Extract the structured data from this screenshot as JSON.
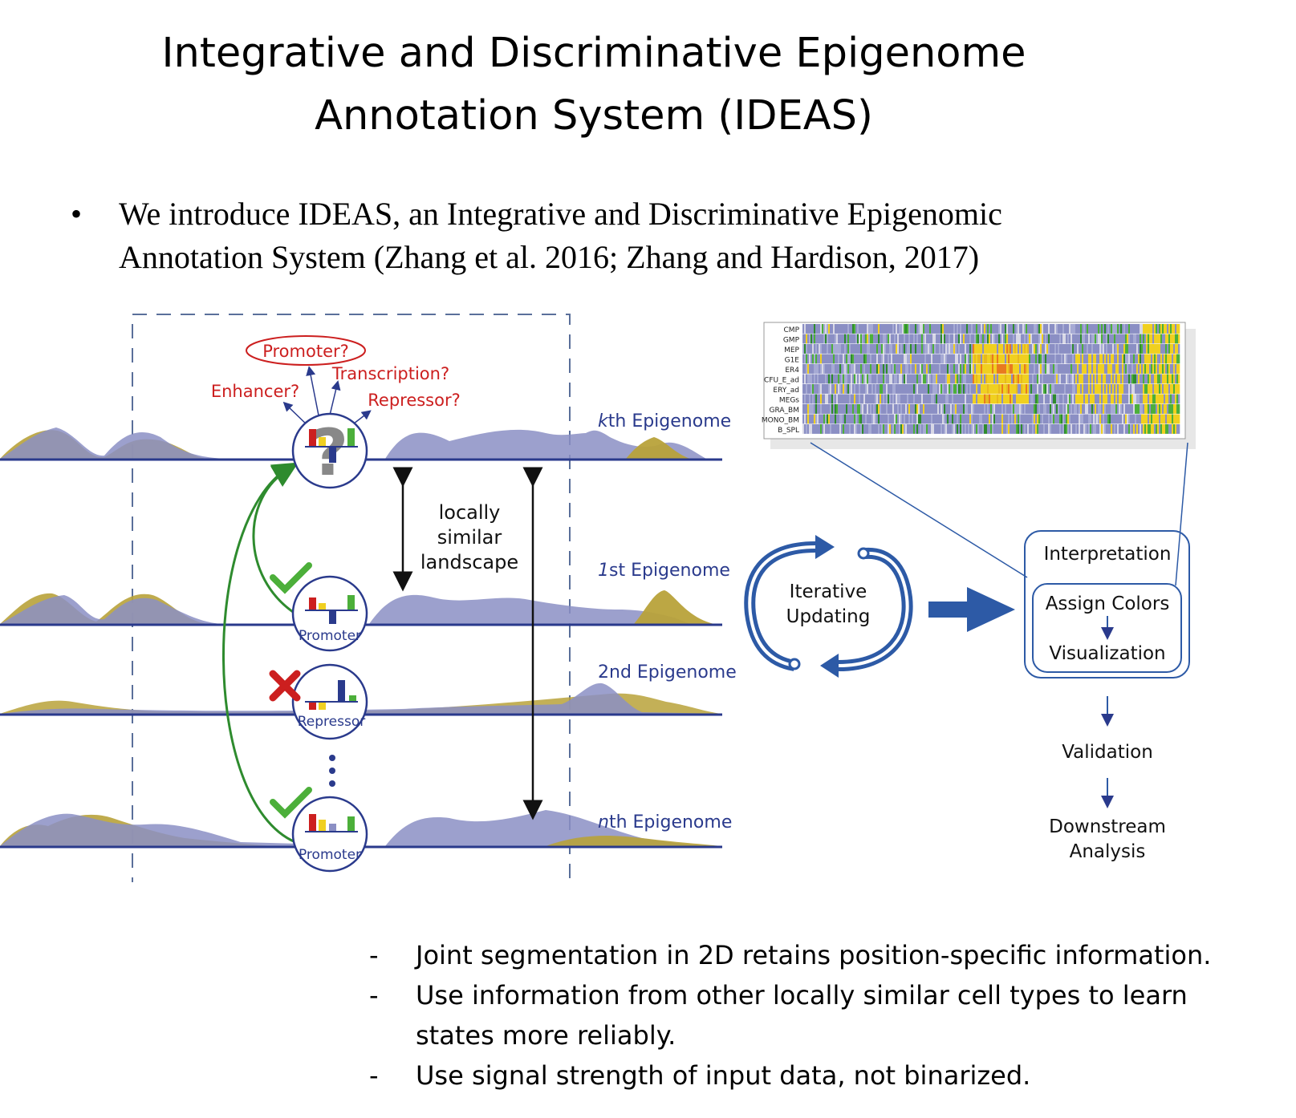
{
  "title": {
    "line1": "Integrative and Discriminative Epigenome",
    "line2": "Annotation System (IDEAS)"
  },
  "bullet": {
    "marker": "•",
    "line1": "We introduce IDEAS, an Integrative and Discriminative Epigenomic",
    "line2": "Annotation System (Zhang et al. 2016; Zhang and Hardison, 2017)"
  },
  "diagram": {
    "questions": {
      "promoter": "Promoter?",
      "transcription": "Transcription?",
      "enhancer": "Enhancer?",
      "repressor": "Repressor?"
    },
    "epigenomes": {
      "kth": {
        "italic": "k",
        "rest": "th Epigenome"
      },
      "first": {
        "italic": "1",
        "rest": "st Epigenome"
      },
      "second": {
        "italic": "",
        "rest": "2nd Epigenome"
      },
      "nth": {
        "italic": "n",
        "rest": "th Epigenome"
      }
    },
    "node_labels": {
      "first": "Promoter",
      "second": "Repressor",
      "nth": "Promoter"
    },
    "question_glyph": "?",
    "locally": [
      "locally",
      "similar",
      "landscape"
    ],
    "iterative": [
      "Iterative",
      "Updating"
    ],
    "flow": {
      "interpretation": "Interpretation",
      "assign_colors": "Assign Colors",
      "visualization": "Visualization",
      "validation": "Validation",
      "downstream": [
        "Downstream",
        "Analysis"
      ]
    },
    "heatmap_rows": [
      "CMP",
      "GMP",
      "MEP",
      "G1E",
      "ER4",
      "CFU_E_ad",
      "ERY_ad",
      "MEGs",
      "GRA_BM",
      "MONO_BM",
      "B_SPL"
    ],
    "colors": {
      "purple": "#8b8fc4",
      "olive": "#b8a23a",
      "navy": "#2a3a8c",
      "blue_arrow": "#2d5aa6",
      "red": "#cc1f1f",
      "green": "#4caf3a",
      "yellow": "#f0d020"
    }
  },
  "points": [
    {
      "dash": "-",
      "text": "Joint segmentation in 2D retains position-specific information."
    },
    {
      "dash": "-",
      "text": "Use information from other locally similar cell types to learn"
    },
    {
      "dash": "",
      "text": "states more reliably."
    },
    {
      "dash": "-",
      "text": "Use signal strength of input data, not binarized."
    }
  ]
}
